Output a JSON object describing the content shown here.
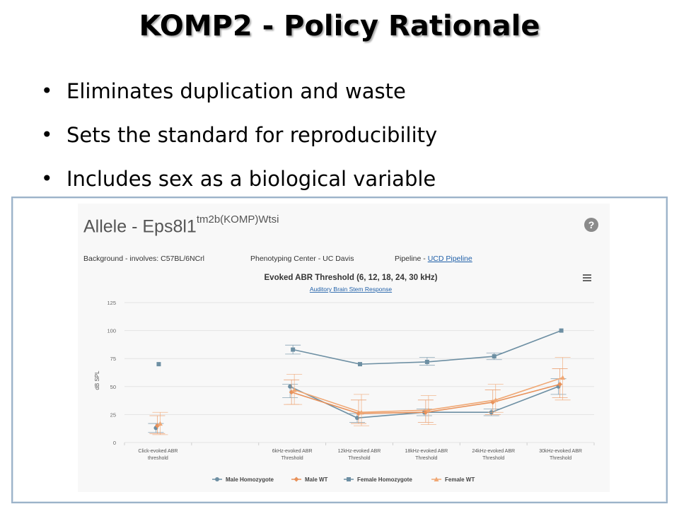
{
  "slide": {
    "title": "KOMP2 - Policy Rationale",
    "bullets": [
      "Eliminates duplication and waste",
      "Sets the standard for reproducibility",
      "Includes sex as a biological variable"
    ]
  },
  "panel": {
    "allele_name": "Allele - Eps8l1",
    "allele_superscript": "tm2b(KOMP)Wtsi",
    "background_text": "Background - involves: C57BL/6NCrl",
    "center_text": "Phenotyping Center - UC Davis",
    "pipeline_label": "Pipeline - ",
    "pipeline_link": "UCD Pipeline",
    "help_icon": "question-circle-icon",
    "menu_icon": "hamburger-menu-icon"
  },
  "chart_data": {
    "type": "line",
    "title": "Evoked ABR Threshold (6, 12, 18, 24, 30 kHz)",
    "subtitle": "Auditory Brain Stem Response",
    "ylabel": "dB SPL",
    "xlabel": "",
    "ylim": [
      0,
      125
    ],
    "yticks": [
      0,
      25,
      50,
      75,
      100,
      125
    ],
    "grid": true,
    "legend_position": "bottom",
    "categories": [
      "Click-evoked ABR threshold",
      "",
      "6kHz-evoked ABR Threshold",
      "12kHz-evoked ABR Threshold",
      "18kHz-evoked ABR Threshold",
      "24kHz-evoked ABR Threshold",
      "30kHz-evoked ABR Threshold"
    ],
    "series": [
      {
        "name": "Male Homozygote",
        "color": "#6d8fa3",
        "marker": "circle",
        "values": [
          13,
          null,
          50,
          22,
          27,
          27,
          50
        ],
        "err_low": [
          9,
          null,
          40,
          18,
          24,
          24,
          43
        ],
        "err_high": [
          17,
          null,
          52,
          26,
          30,
          30,
          57
        ]
      },
      {
        "name": "Male WT",
        "color": "#e8915a",
        "marker": "diamond",
        "values": [
          15,
          null,
          45,
          26,
          27,
          36,
          52
        ],
        "err_low": [
          8,
          null,
          34,
          17,
          18,
          25,
          40
        ],
        "err_high": [
          24,
          null,
          56,
          38,
          38,
          47,
          66
        ]
      },
      {
        "name": "Female Homozygote",
        "color": "#6d8fa3",
        "marker": "square",
        "values": [
          70,
          null,
          83,
          70,
          72,
          77,
          100
        ],
        "err_low": [
          70,
          null,
          79,
          70,
          69,
          74,
          100
        ],
        "err_high": [
          70,
          null,
          87,
          70,
          76,
          80,
          100
        ]
      },
      {
        "name": "Female WT",
        "color": "#f0a875",
        "marker": "triangle",
        "values": [
          17,
          null,
          47,
          27,
          29,
          38,
          58
        ],
        "err_low": [
          7,
          null,
          34,
          15,
          16,
          27,
          38
        ],
        "err_high": [
          27,
          null,
          61,
          43,
          42,
          52,
          76
        ]
      }
    ]
  }
}
